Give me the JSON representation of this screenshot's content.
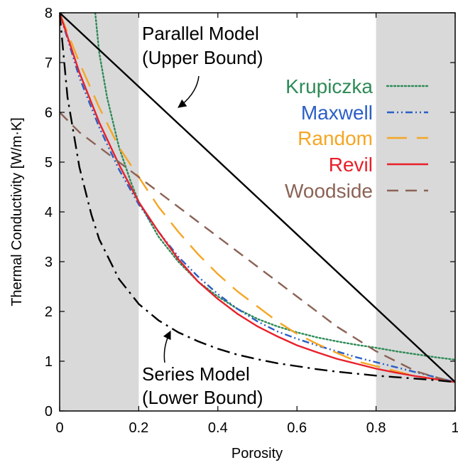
{
  "chart_data": {
    "type": "line",
    "xlabel": "Porosity",
    "ylabel": "Thermal Conductivity [W/m·K]",
    "xlim": [
      0,
      1
    ],
    "ylim": [
      0,
      8
    ],
    "xticks": [
      0,
      0.2,
      0.4,
      0.6,
      0.8,
      1
    ],
    "xtick_labels": [
      "0",
      "0.2",
      "0.4",
      "0.6",
      "0.8",
      "1"
    ],
    "yticks": [
      0,
      1,
      2,
      3,
      4,
      5,
      6,
      7,
      8
    ],
    "ytick_labels": [
      "0",
      "1",
      "2",
      "3",
      "4",
      "5",
      "6",
      "7",
      "8"
    ],
    "shaded_regions": [
      [
        0,
        0.2
      ],
      [
        0.8,
        1.0
      ]
    ],
    "shade_color": "#d9d9d9",
    "legend_position": "top-right",
    "series": [
      {
        "name": "Krupiczka",
        "color": "#2e8b57",
        "dash": "dotted",
        "x": [
          0.09,
          0.1,
          0.12,
          0.15,
          0.18,
          0.2,
          0.25,
          0.3,
          0.35,
          0.4,
          0.45,
          0.5,
          0.55,
          0.6,
          0.65,
          0.7,
          0.75,
          0.8,
          0.85,
          0.9,
          0.95,
          1.0
        ],
        "y": [
          8.0,
          7.2,
          6.3,
          5.3,
          4.6,
          4.2,
          3.5,
          3.0,
          2.6,
          2.3,
          2.05,
          1.85,
          1.7,
          1.58,
          1.48,
          1.4,
          1.33,
          1.27,
          1.2,
          1.14,
          1.08,
          1.03
        ]
      },
      {
        "name": "Maxwell",
        "color": "#2a5fc6",
        "dash": "dash-dot-dot",
        "x": [
          0,
          0.05,
          0.1,
          0.15,
          0.2,
          0.25,
          0.3,
          0.35,
          0.4,
          0.45,
          0.5,
          0.55,
          0.6,
          0.65,
          0.7,
          0.75,
          0.8,
          0.85,
          0.9,
          0.95,
          1.0
        ],
        "y": [
          8.0,
          6.7,
          5.7,
          4.85,
          4.15,
          3.6,
          3.1,
          2.7,
          2.35,
          2.05,
          1.8,
          1.6,
          1.45,
          1.32,
          1.2,
          1.08,
          0.98,
          0.88,
          0.78,
          0.68,
          0.58
        ]
      },
      {
        "name": "Random",
        "color": "#f5a623",
        "dash": "long-dash",
        "x": [
          0,
          0.05,
          0.1,
          0.15,
          0.2,
          0.25,
          0.3,
          0.35,
          0.4,
          0.45,
          0.5,
          0.55,
          0.6,
          0.65,
          0.7,
          0.75,
          0.8,
          0.85,
          0.9,
          0.95,
          1.0
        ],
        "y": [
          8.0,
          7.0,
          6.1,
          5.3,
          4.7,
          4.1,
          3.6,
          3.15,
          2.75,
          2.4,
          2.1,
          1.8,
          1.55,
          1.35,
          1.17,
          1.0,
          0.9,
          0.8,
          0.7,
          0.64,
          0.58
        ]
      },
      {
        "name": "Revil",
        "color": "#e8202a",
        "dash": "solid",
        "x": [
          0,
          0.05,
          0.1,
          0.15,
          0.2,
          0.25,
          0.3,
          0.35,
          0.4,
          0.45,
          0.5,
          0.55,
          0.6,
          0.65,
          0.7,
          0.75,
          0.8,
          0.85,
          0.9,
          0.95,
          1.0
        ],
        "y": [
          8.0,
          6.8,
          5.8,
          4.95,
          4.2,
          3.6,
          3.05,
          2.6,
          2.25,
          1.95,
          1.7,
          1.5,
          1.32,
          1.18,
          1.05,
          0.95,
          0.85,
          0.77,
          0.7,
          0.64,
          0.58
        ]
      },
      {
        "name": "Woodside",
        "color": "#8b6356",
        "dash": "dashed",
        "x": [
          0,
          0.05,
          0.1,
          0.15,
          0.2,
          0.25,
          0.3,
          0.35,
          0.4,
          0.45,
          0.5,
          0.55,
          0.6,
          0.65,
          0.7,
          0.75,
          0.8,
          0.85,
          0.9,
          0.95,
          1.0
        ],
        "y": [
          6.0,
          5.6,
          5.3,
          5.0,
          4.7,
          4.4,
          4.1,
          3.8,
          3.5,
          3.2,
          2.9,
          2.6,
          2.3,
          2.0,
          1.7,
          1.45,
          1.2,
          1.0,
          0.8,
          0.68,
          0.58
        ]
      },
      {
        "name": "Parallel Model",
        "color": "#000000",
        "dash": "solid",
        "x": [
          0,
          1
        ],
        "y": [
          8.0,
          0.58
        ]
      },
      {
        "name": "Series Model",
        "color": "#000000",
        "dash": "dash-dot",
        "x": [
          0,
          0.02,
          0.05,
          0.08,
          0.1,
          0.15,
          0.2,
          0.25,
          0.3,
          0.35,
          0.4,
          0.45,
          0.5,
          0.55,
          0.6,
          0.65,
          0.7,
          0.75,
          0.8,
          0.85,
          0.9,
          0.95,
          1.0
        ],
        "y": [
          8.0,
          6.3,
          4.9,
          3.95,
          3.45,
          2.65,
          2.15,
          1.82,
          1.58,
          1.4,
          1.25,
          1.13,
          1.04,
          0.96,
          0.9,
          0.84,
          0.79,
          0.75,
          0.71,
          0.68,
          0.65,
          0.62,
          0.58
        ]
      }
    ],
    "annotations": [
      {
        "lines": [
          "Parallel Model",
          "(Upper Bound)"
        ],
        "arrow_to": [
          0.3,
          6.1
        ]
      },
      {
        "lines": [
          "Series Model",
          "(Lower Bound)"
        ],
        "arrow_to": [
          0.28,
          1.6
        ]
      }
    ]
  }
}
